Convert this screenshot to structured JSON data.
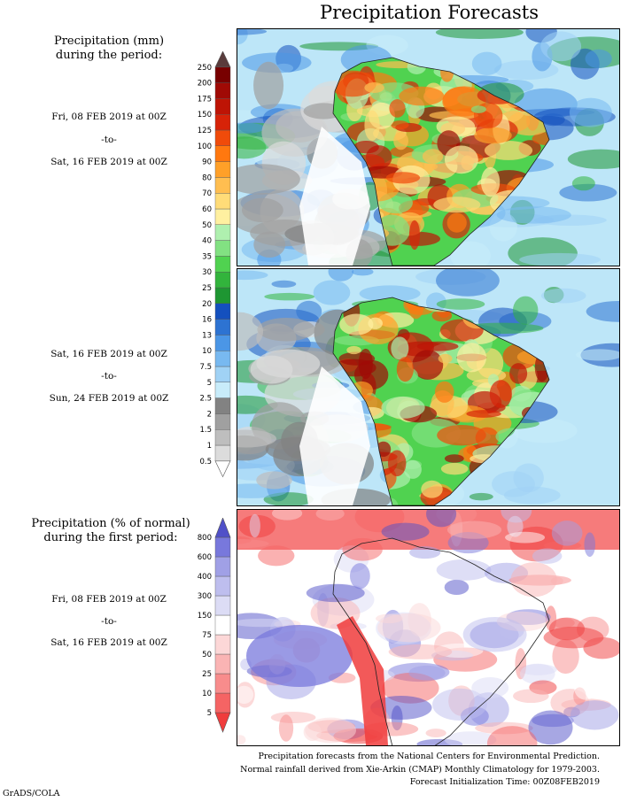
{
  "title": "Precipitation Forecasts",
  "amount_section": {
    "heading_line1": "Precipitation (mm)",
    "heading_line2": "during the period:",
    "period1": {
      "start": "Fri, 08 FEB 2019 at 00Z",
      "sep": "-to-",
      "end": "Sat, 16 FEB 2019 at 00Z"
    },
    "period2": {
      "start": "Sat, 16 FEB 2019 at 00Z",
      "sep": "-to-",
      "end": "Sun, 24 FEB 2019 at 00Z"
    }
  },
  "percent_section": {
    "heading_line1": "Precipitation (% of normal)",
    "heading_line2": "during the first period:",
    "period": {
      "start": "Fri, 08 FEB 2019 at 00Z",
      "sep": "-to-",
      "end": "Sat, 16 FEB 2019 at 00Z"
    }
  },
  "footer": {
    "line1": "Precipitation forecasts from the National Centers for Environmental Prediction.",
    "line2": "Normal rainfall derived from Xie-Arkin (CMAP) Monthly Climatology for 1979-2003.",
    "line3": "Forecast Initialization Time: 00Z08FEB2019"
  },
  "credit": "GrADS/COLA",
  "chart_data": [
    {
      "type": "heatmap",
      "title": "Precipitation (mm) during the period: Fri, 08 FEB 2019 at 00Z -to- Sat, 16 FEB 2019 at 00Z",
      "colorbar_levels": [
        "0.5",
        "1",
        "1.5",
        "2",
        "2.5",
        "5",
        "7.5",
        "10",
        "13",
        "16",
        "20",
        "25",
        "30",
        "35",
        "40",
        "50",
        "60",
        "70",
        "80",
        "90",
        "100",
        "125",
        "150",
        "175",
        "200",
        "250"
      ],
      "colorbar_colors": [
        "#ffffff",
        "#dcdcdc",
        "#bebebe",
        "#a0a0a0",
        "#828282",
        "#c8ecfa",
        "#a0d2f5",
        "#78b9f0",
        "#4b96e6",
        "#2d73d2",
        "#1450be",
        "#1e9632",
        "#32b43c",
        "#50d250",
        "#82e182",
        "#aff0af",
        "#fff0a0",
        "#ffdc78",
        "#ffbe50",
        "#ffa028",
        "#ff780f",
        "#f04b0a",
        "#d72308",
        "#be1405",
        "#a00a05",
        "#780000",
        "#5a3c3c"
      ],
      "region": "South America"
    },
    {
      "type": "heatmap",
      "title": "Precipitation (mm) during the period: Sat, 16 FEB 2019 at 00Z -to- Sun, 24 FEB 2019 at 00Z",
      "colorbar_levels": [
        "0.5",
        "1",
        "1.5",
        "2",
        "2.5",
        "5",
        "7.5",
        "10",
        "13",
        "16",
        "20",
        "25",
        "30",
        "35",
        "40",
        "50",
        "60",
        "70",
        "80",
        "90",
        "100",
        "125",
        "150",
        "175",
        "200",
        "250"
      ],
      "region": "South America"
    },
    {
      "type": "heatmap",
      "title": "Precipitation (% of normal) during the first period",
      "colorbar_levels": [
        "5",
        "10",
        "25",
        "50",
        "75",
        "150",
        "300",
        "400",
        "600",
        "800"
      ],
      "colorbar_colors": [
        "#f03c3c",
        "#f56464",
        "#f88c8c",
        "#fab4b4",
        "#fcd7d7",
        "#ffffff",
        "#dcdcf5",
        "#bebeee",
        "#a0a0e6",
        "#7878dc",
        "#5050c8"
      ],
      "region": "South America"
    }
  ]
}
